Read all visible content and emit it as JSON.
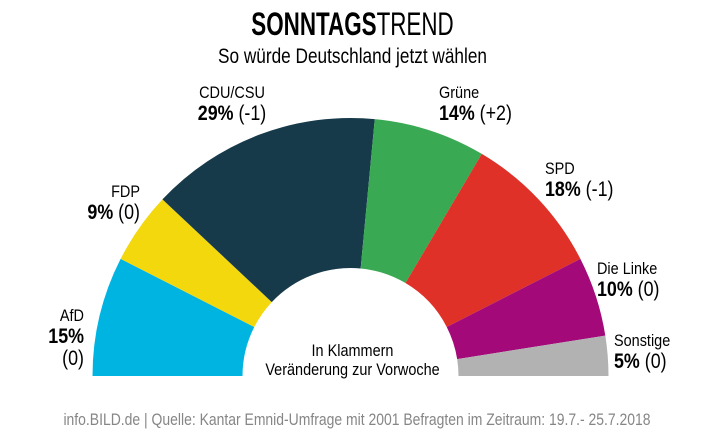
{
  "header": {
    "title_bold": "SONNTAGS",
    "title_light": "TREND",
    "subtitle": "So würde Deutschland jetzt wählen"
  },
  "center_note": {
    "line1": "In Klammern",
    "line2": "Veränderung zur Vorwoche"
  },
  "footer": {
    "source": "info.BILD.de | Quelle: Kantar Emnid-Umfrage mit 2001 Befragten im Zeitraum: 19.7.- 25.7.2018"
  },
  "chart_data": {
    "type": "pie",
    "variant": "semicircle-donut",
    "title": "Sonntagstrend",
    "unit": "%",
    "total": 100,
    "arc_degrees": 180,
    "legend_position": "around-arc",
    "parties": [
      {
        "id": "afd",
        "name": "AfD",
        "value": 15,
        "change": "(0)",
        "color": "#00b4e1"
      },
      {
        "id": "fdp",
        "name": "FDP",
        "value": 9,
        "change": "(0)",
        "color": "#f3d80e"
      },
      {
        "id": "cducsu",
        "name": "CDU/CSU",
        "value": 29,
        "change": "(-1)",
        "color": "#173a4b"
      },
      {
        "id": "gruene",
        "name": "Grüne",
        "value": 14,
        "change": "(+2)",
        "color": "#3aa953"
      },
      {
        "id": "spd",
        "name": "SPD",
        "value": 18,
        "change": "(-1)",
        "color": "#df3127"
      },
      {
        "id": "linke",
        "name": "Die Linke",
        "value": 10,
        "change": "(0)",
        "color": "#a40979"
      },
      {
        "id": "sonstige",
        "name": "Sonstige",
        "value": 5,
        "change": "(0)",
        "color": "#b2b2b2"
      }
    ]
  }
}
